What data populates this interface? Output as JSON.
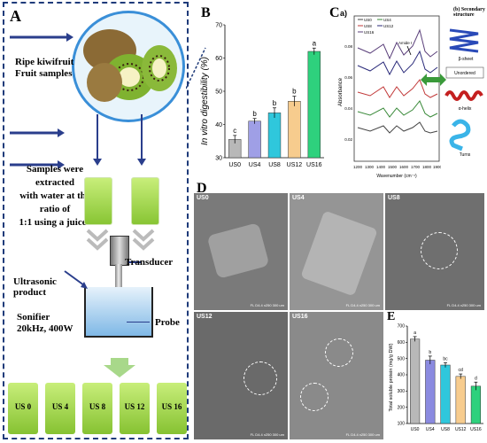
{
  "panelA": {
    "label": "A",
    "fruit_text": [
      "Ripe kiwifruit",
      "Fruit samples"
    ],
    "extract_text": [
      "Samples were",
      "extracted",
      "with water at the",
      "ratio of",
      "1:1 using a juicer"
    ],
    "transducer": "Transducer",
    "ultrasonic": [
      "Ultrasonic",
      "product"
    ],
    "sonifier": [
      "Sonifier",
      "20kHz, 400W"
    ],
    "probe": "Probe",
    "samples": [
      "US 0",
      "US 4",
      "US 8",
      "US 12",
      "US 16"
    ]
  },
  "panelB": {
    "label": "B",
    "chart_data": {
      "type": "bar",
      "ylabel": "In vitro digestibility (%)",
      "categories": [
        "US0",
        "US4",
        "US8",
        "US12",
        "US16"
      ],
      "values": [
        35.5,
        41,
        43.5,
        47,
        62
      ],
      "errors": [
        1.2,
        0.8,
        1.5,
        1.5,
        1.0
      ],
      "letters": [
        "c",
        "b",
        "b",
        "b",
        "a"
      ],
      "colors": [
        "#b8b8b8",
        "#9f9fe6",
        "#2fc7dc",
        "#f7cc8e",
        "#2ed17d"
      ],
      "yticks": [
        30,
        40,
        50,
        60,
        70
      ],
      "ylim": [
        30,
        70
      ]
    }
  },
  "panelC": {
    "label": "C",
    "sublabel_a": "a)",
    "sublabel_b": "(b) Secondary structure",
    "ylabel": "Absorbance",
    "xlabel": "Wavenumber (cm⁻¹)",
    "annotation": "Amide I",
    "legend": [
      "US0",
      "US4",
      "US8",
      "US12",
      "US16"
    ],
    "xticks": [
      "1200",
      "1300",
      "1400",
      "1500",
      "1600",
      "1700",
      "1800",
      "1900"
    ],
    "yticks": [
      "0.02",
      "0.04",
      "0.06",
      "0.08"
    ],
    "structures": [
      "β-sheet",
      "Unordered",
      "α-helix",
      "Turns"
    ]
  },
  "panelD": {
    "label": "D",
    "images": [
      "US0",
      "US4",
      "US8",
      "US12",
      "US16"
    ],
    "scale_text": "FL  D4.4  x250    300 um"
  },
  "panelE": {
    "label": "E",
    "chart_data": {
      "type": "bar",
      "ylabel": "Total soluble protein (mg/g DW)",
      "categories": [
        "US0",
        "US4",
        "US8",
        "US12",
        "US16"
      ],
      "values": [
        620,
        490,
        460,
        390,
        330
      ],
      "errors": [
        15,
        25,
        15,
        15,
        25
      ],
      "letters": [
        "a",
        "b",
        "bc",
        "cd",
        "d"
      ],
      "colors": [
        "#b8b8b8",
        "#8a8ae0",
        "#2fc7dc",
        "#f7cc8e",
        "#2ed17d"
      ],
      "yticks": [
        100,
        200,
        300,
        400,
        500,
        600,
        700
      ],
      "ylim": [
        100,
        700
      ]
    }
  }
}
